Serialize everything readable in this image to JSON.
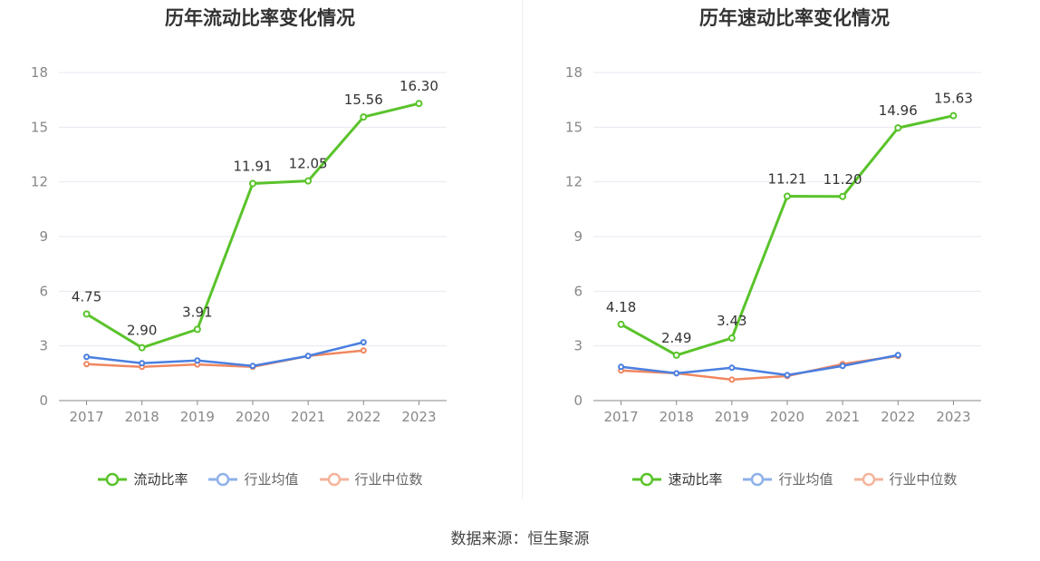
{
  "chart_data": [
    {
      "type": "line",
      "title": "历年流动比率变化情况",
      "categories": [
        "2017",
        "2018",
        "2019",
        "2020",
        "2021",
        "2022",
        "2023"
      ],
      "ylim": [
        0,
        18
      ],
      "yticks": [
        0,
        3,
        6,
        9,
        12,
        15,
        18
      ],
      "series": [
        {
          "name": "流动比率",
          "color": "#5ac32b",
          "values": [
            4.75,
            2.9,
            3.91,
            11.91,
            12.05,
            15.56,
            16.3
          ],
          "labels": [
            "4.75",
            "2.90",
            "3.91",
            "11.91",
            "12.05",
            "15.56",
            "16.30"
          ]
        },
        {
          "name": "行业均值",
          "color": "#4a7fe0",
          "values": [
            2.4,
            2.05,
            2.2,
            1.9,
            2.45,
            3.2,
            null
          ]
        },
        {
          "name": "行业中位数",
          "color": "#f08760",
          "values": [
            2.0,
            1.85,
            1.98,
            1.85,
            2.45,
            2.75,
            null
          ]
        }
      ]
    },
    {
      "type": "line",
      "title": "历年速动比率变化情况",
      "categories": [
        "2017",
        "2018",
        "2019",
        "2020",
        "2021",
        "2022",
        "2023"
      ],
      "ylim": [
        0,
        18
      ],
      "yticks": [
        0,
        3,
        6,
        9,
        12,
        15,
        18
      ],
      "series": [
        {
          "name": "速动比率",
          "color": "#5ac32b",
          "values": [
            4.18,
            2.49,
            3.43,
            11.21,
            11.2,
            14.96,
            15.63
          ],
          "labels": [
            "4.18",
            "2.49",
            "3.43",
            "11.21",
            "11.20",
            "14.96",
            "15.63"
          ]
        },
        {
          "name": "行业均值",
          "color": "#4a7fe0",
          "values": [
            1.85,
            1.5,
            1.8,
            1.4,
            1.9,
            2.5,
            null
          ]
        },
        {
          "name": "行业中位数",
          "color": "#f08760",
          "values": [
            1.65,
            1.5,
            1.15,
            1.35,
            2.0,
            2.45,
            null
          ]
        }
      ]
    }
  ],
  "legend_colors": {
    "main": "#5ac32b",
    "avg": "#8fb1ea",
    "median": "#f4b49c"
  },
  "source": "数据来源：恒生聚源"
}
